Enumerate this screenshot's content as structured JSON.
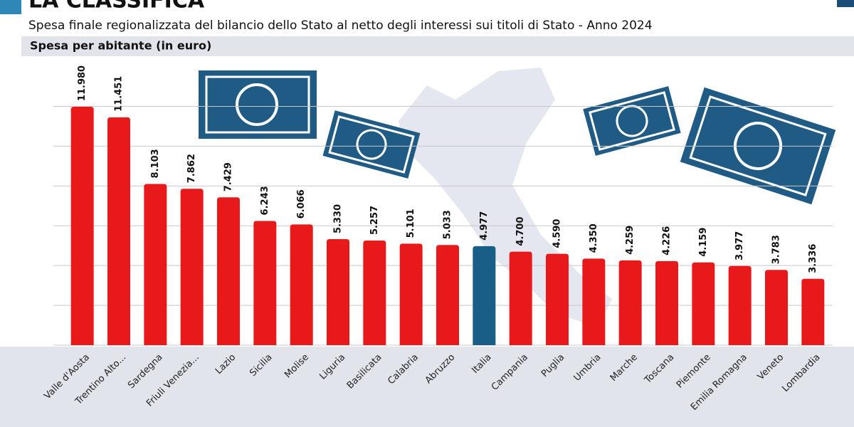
{
  "chart_data": {
    "type": "bar",
    "title": "LA CLASSIFICA",
    "subtitle": "Spesa finale regionalizzata del bilancio dello Stato al netto degli interessi sui titoli di Stato - Anno 2024",
    "y_label": "Spesa per abitante (in euro)",
    "categories": [
      "Valle d'Aosta",
      "Trentino Alto...",
      "Sardegna",
      "Friuli Venezia...",
      "Lazio",
      "Sicilia",
      "Molise",
      "Liguria",
      "Basilicata",
      "Calabria",
      "Abruzzo",
      "Italia",
      "Campania",
      "Puglia",
      "Umbria",
      "Marche",
      "Toscana",
      "Piemonte",
      "Emilia Romagna",
      "Veneto",
      "Lombardia"
    ],
    "values": [
      11980,
      11451,
      8103,
      7862,
      7429,
      6243,
      6066,
      5330,
      5257,
      5101,
      5033,
      4977,
      4700,
      4590,
      4350,
      4259,
      4226,
      4159,
      3977,
      3783,
      3336
    ],
    "value_labels": [
      "11.980",
      "11.451",
      "8.103",
      "7.862",
      "7.429",
      "6.243",
      "6.066",
      "5.330",
      "5.257",
      "5.101",
      "5.033",
      "4.977",
      "4.700",
      "4.590",
      "4.350",
      "4.259",
      "4.226",
      "4.159",
      "3.977",
      "3.783",
      "3.336"
    ],
    "colors": [
      "#e8191b",
      "#e8191b",
      "#e8191b",
      "#e8191b",
      "#e8191b",
      "#e8191b",
      "#e8191b",
      "#e8191b",
      "#e8191b",
      "#e8191b",
      "#e8191b",
      "#195e86",
      "#e8191b",
      "#e8191b",
      "#e8191b",
      "#e8191b",
      "#e8191b",
      "#e8191b",
      "#e8191b",
      "#e8191b",
      "#e8191b"
    ],
    "ylim": [
      0,
      12000
    ],
    "yticks": [
      0,
      2000,
      4000,
      6000,
      8000,
      10000,
      12000
    ],
    "grid": true
  }
}
